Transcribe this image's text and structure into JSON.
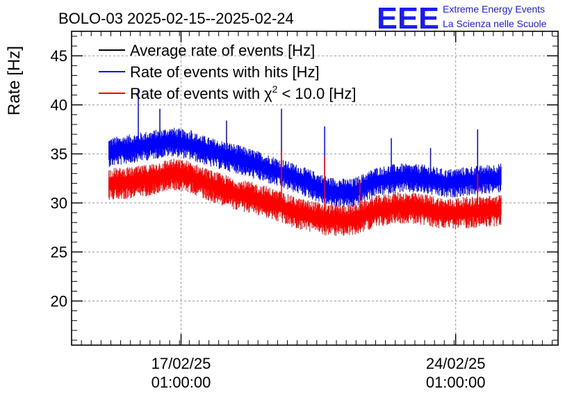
{
  "logo": {
    "mark": "EEE",
    "line1": "Extreme Energy Events",
    "line2": "La Scienza nelle Scuole"
  },
  "chart_data": {
    "type": "line",
    "title": "BOLO-03 2025-02-15--2025-02-24",
    "ylabel": "Rate [Hz]",
    "xlabel": "",
    "ylim": [
      15.5,
      47.5
    ],
    "yticks": [
      20,
      25,
      30,
      35,
      40,
      45
    ],
    "x_unit": "days since 15/02/25 00:00",
    "xlim": [
      -0.75,
      11.65
    ],
    "xticks": [
      {
        "x": 2.04,
        "label_date": "17/02/25",
        "label_time": "01:00:00"
      },
      {
        "x": 9.04,
        "label_date": "24/02/25",
        "label_time": "01:00:00"
      }
    ],
    "grid": true,
    "legend_position": "top-left",
    "x_range_data": [
      0.2,
      10.2
    ],
    "series": [
      {
        "name": "Average rate of events [Hz]",
        "legend_main": "Average rate of events [Hz]",
        "color": "#000000",
        "style": "line",
        "x": [],
        "values": []
      },
      {
        "name": "Rate of events with hits [Hz]",
        "legend_main": "Rate of events with hits [Hz]",
        "color": "#0000ff",
        "style": "band",
        "x": [
          0.2,
          0.8,
          1.2,
          1.8,
          2.2,
          2.8,
          3.4,
          4.2,
          5.0,
          5.8,
          6.4,
          7.0,
          7.6,
          8.2,
          8.8,
          9.4,
          10.2
        ],
        "values": [
          35.2,
          35.6,
          35.9,
          36.3,
          36.0,
          35.2,
          34.6,
          33.6,
          32.5,
          31.2,
          31.0,
          32.2,
          32.6,
          32.5,
          32.0,
          32.3,
          32.6
        ],
        "spread": 1.2,
        "spikes": [
          {
            "x": 0.95,
            "value": 41.7
          },
          {
            "x": 1.5,
            "value": 39.6
          },
          {
            "x": 2.3,
            "value": 37.4
          },
          {
            "x": 3.2,
            "value": 38.4
          },
          {
            "x": 4.6,
            "value": 39.6
          },
          {
            "x": 5.7,
            "value": 37.8
          },
          {
            "x": 7.4,
            "value": 36.6
          },
          {
            "x": 8.4,
            "value": 35.6
          },
          {
            "x": 9.6,
            "value": 37.5
          }
        ]
      },
      {
        "name": "Rate of events with chi2 < 10.0 [Hz]",
        "legend_main": "Rate of events with",
        "legend_symbol": "χ",
        "legend_sup": "2",
        "legend_tail": "< 10.0 [Hz]",
        "color": "#ff0000",
        "style": "band",
        "x": [
          0.2,
          0.8,
          1.2,
          1.8,
          2.2,
          2.8,
          3.4,
          4.2,
          5.0,
          5.8,
          6.4,
          7.0,
          7.6,
          8.2,
          8.8,
          9.4,
          10.2
        ],
        "values": [
          32.0,
          32.1,
          32.4,
          33.0,
          32.8,
          31.8,
          31.0,
          30.2,
          29.0,
          28.3,
          28.3,
          29.2,
          29.6,
          29.4,
          28.9,
          29.1,
          29.3
        ],
        "spread": 1.3,
        "spikes": [
          {
            "x": 4.6,
            "value": 35.4
          },
          {
            "x": 5.7,
            "value": 34.8
          },
          {
            "x": 6.6,
            "value": 32.4
          },
          {
            "x": 9.6,
            "value": 33.0
          }
        ]
      }
    ]
  }
}
